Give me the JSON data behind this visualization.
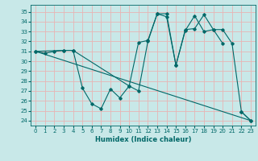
{
  "title": "",
  "xlabel": "Humidex (Indice chaleur)",
  "bg_color": "#c8e8e8",
  "line_color": "#006868",
  "grid_color": "#e8b4b4",
  "xlim": [
    -0.5,
    23.5
  ],
  "ylim": [
    23.5,
    35.7
  ],
  "yticks": [
    24,
    25,
    26,
    27,
    28,
    29,
    30,
    31,
    32,
    33,
    34,
    35
  ],
  "xticks": [
    0,
    1,
    2,
    3,
    4,
    5,
    6,
    7,
    8,
    9,
    10,
    11,
    12,
    13,
    14,
    15,
    16,
    17,
    18,
    19,
    20,
    21,
    22,
    23
  ],
  "series1_x": [
    0,
    1,
    2,
    3,
    4,
    5,
    6,
    7,
    8,
    9,
    10,
    11,
    12,
    13,
    14,
    15,
    16,
    17,
    18,
    19,
    20,
    22,
    23
  ],
  "series1_y": [
    31.0,
    30.8,
    31.0,
    31.1,
    31.1,
    27.3,
    25.7,
    25.2,
    27.2,
    26.3,
    27.5,
    27.0,
    32.0,
    34.8,
    34.5,
    29.6,
    33.1,
    34.6,
    33.0,
    33.2,
    31.8,
    24.9,
    24.0
  ],
  "series2_x": [
    0,
    3,
    4,
    10,
    11,
    12,
    13,
    14,
    15,
    16,
    17,
    18,
    19,
    20,
    21,
    22,
    23
  ],
  "series2_y": [
    31.0,
    31.1,
    31.1,
    27.5,
    31.9,
    32.1,
    34.8,
    34.8,
    29.6,
    33.2,
    33.3,
    34.7,
    33.2,
    33.2,
    31.8,
    24.9,
    24.0
  ],
  "series3_x": [
    0,
    23
  ],
  "series3_y": [
    31.0,
    24.0
  ],
  "xlabel_fontsize": 6,
  "tick_fontsize": 5
}
